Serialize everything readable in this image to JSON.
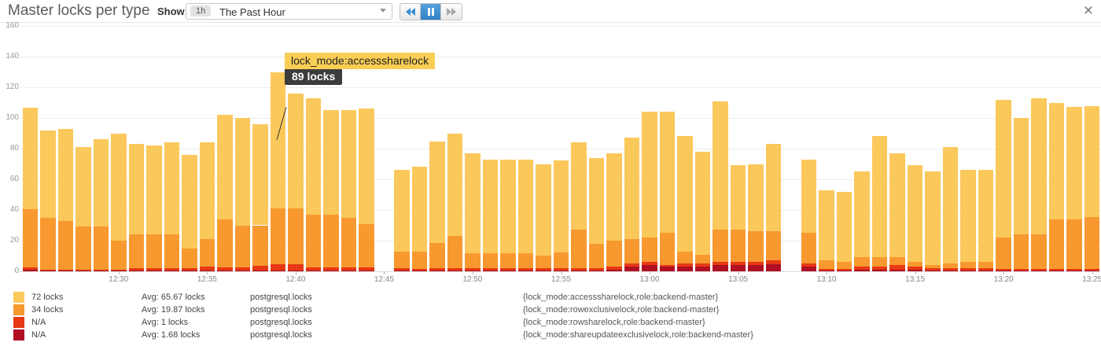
{
  "header": {
    "title": "Master locks per type",
    "show_label": "Show",
    "timeframe_badge": "1h",
    "timeframe_value": "The Past Hour",
    "controls": {
      "rewind": "rewind",
      "pause": "pause",
      "forward": "fast-forward"
    },
    "close": "×"
  },
  "tooltip": {
    "label": "lock_mode:accesssharelock",
    "value": "89 locks",
    "anchor_time": "12:39"
  },
  "legend": {
    "rows": [
      {
        "color": "#fbc95c",
        "value": "72 locks",
        "avg": "Avg: 65.67 locks",
        "metric": "postgresql.locks",
        "tags": "{lock_mode:accesssharelock,role:backend-master}"
      },
      {
        "color": "#f8992f",
        "value": "34 locks",
        "avg": "Avg: 19.87 locks",
        "metric": "postgresql.locks",
        "tags": "{lock_mode:rowexclusivelock,role:backend-master}"
      },
      {
        "color": "#e63914",
        "value": "N/A",
        "avg": "Avg: 1 locks",
        "metric": "postgresql.locks",
        "tags": "{lock_mode:rowsharelock,role:backend-master}"
      },
      {
        "color": "#b00e23",
        "value": "N/A",
        "avg": "Avg: 1.68 locks",
        "metric": "postgresql.locks",
        "tags": "{lock_mode:shareupdateexclusivelock,role:backend-master}"
      }
    ]
  },
  "chart_data": {
    "type": "bar",
    "stacked": true,
    "title": "Master locks per type",
    "ylim": [
      0,
      160
    ],
    "yticks": [
      0,
      20,
      40,
      60,
      80,
      100,
      120,
      140,
      160
    ],
    "xticks": [
      "12:30",
      "12:35",
      "12:40",
      "12:45",
      "12:50",
      "12:55",
      "13:00",
      "13:05",
      "13:10",
      "13:15",
      "13:20",
      "13:25"
    ],
    "grid": true,
    "legend_position": "bottom",
    "series": [
      {
        "name": "accesssharelock",
        "color": "#fbc85b"
      },
      {
        "name": "rowexclusivelock",
        "color": "#f8992f"
      },
      {
        "name": "rowsharelock",
        "color": "#e63914"
      },
      {
        "name": "shareupdateexclusivelock",
        "color": "#b00e23"
      }
    ],
    "bars": [
      {
        "t": "12:25",
        "v": [
          66,
          38,
          1.5,
          1
        ]
      },
      {
        "t": "12:26",
        "v": [
          57,
          34,
          0.7,
          0.3
        ]
      },
      {
        "t": "12:27",
        "v": [
          60,
          32,
          0.7,
          0.3
        ]
      },
      {
        "t": "12:28",
        "v": [
          52,
          28,
          0.7,
          0.3
        ]
      },
      {
        "t": "12:29",
        "v": [
          57,
          28,
          0.7,
          0.3
        ]
      },
      {
        "t": "12:30",
        "v": [
          70,
          19,
          0.7,
          0.3
        ]
      },
      {
        "t": "12:31",
        "v": [
          59,
          22,
          1.7,
          0.3
        ]
      },
      {
        "t": "12:32",
        "v": [
          58,
          22,
          1.7,
          0.3
        ]
      },
      {
        "t": "12:33",
        "v": [
          60,
          22,
          1.7,
          0.3
        ]
      },
      {
        "t": "12:34",
        "v": [
          61,
          13,
          1.7,
          0.3
        ]
      },
      {
        "t": "12:35",
        "v": [
          63,
          18,
          2.5,
          0.5
        ]
      },
      {
        "t": "12:36",
        "v": [
          68,
          31.5,
          2,
          0.5
        ]
      },
      {
        "t": "12:37",
        "v": [
          70,
          27.5,
          2,
          0.5
        ]
      },
      {
        "t": "12:38",
        "v": [
          66,
          26.5,
          3,
          0.5
        ]
      },
      {
        "t": "12:39",
        "v": [
          89,
          36.5,
          4,
          0.5
        ]
      },
      {
        "t": "12:40",
        "v": [
          75,
          36.5,
          4,
          0.5
        ]
      },
      {
        "t": "12:41",
        "v": [
          76,
          34.5,
          2,
          0.5
        ]
      },
      {
        "t": "12:42",
        "v": [
          68,
          34.5,
          2,
          0.5
        ]
      },
      {
        "t": "12:43",
        "v": [
          70,
          32.5,
          2,
          0.5
        ]
      },
      {
        "t": "12:44",
        "v": [
          75,
          28.5,
          2,
          0.5
        ]
      },
      {
        "t": "12:45",
        "v": null
      },
      {
        "t": "12:46",
        "v": [
          53,
          11,
          1.5,
          0.5
        ]
      },
      {
        "t": "12:47",
        "v": [
          55,
          11.5,
          1,
          0.5
        ]
      },
      {
        "t": "12:48",
        "v": [
          66,
          16.5,
          1.5,
          0.5
        ]
      },
      {
        "t": "12:49",
        "v": [
          67,
          21,
          1.5,
          0.5
        ]
      },
      {
        "t": "12:50",
        "v": [
          65,
          10,
          1.5,
          0.5
        ]
      },
      {
        "t": "12:51",
        "v": [
          61,
          10,
          1.5,
          0.5
        ]
      },
      {
        "t": "12:52",
        "v": [
          61,
          10,
          1.5,
          0.5
        ]
      },
      {
        "t": "12:53",
        "v": [
          61,
          10,
          1.5,
          0.5
        ]
      },
      {
        "t": "12:54",
        "v": [
          59,
          8.5,
          1.5,
          0.5
        ]
      },
      {
        "t": "12:55",
        "v": [
          60,
          10.5,
          1.5,
          0.5
        ]
      },
      {
        "t": "12:56",
        "v": [
          57,
          25,
          1.5,
          0.5
        ]
      },
      {
        "t": "12:57",
        "v": [
          56,
          16,
          1.5,
          0.5
        ]
      },
      {
        "t": "12:58",
        "v": [
          57,
          17,
          2,
          1
        ]
      },
      {
        "t": "12:59",
        "v": [
          66,
          16,
          2,
          3
        ]
      },
      {
        "t": "13:00",
        "v": [
          82,
          16,
          2,
          4
        ]
      },
      {
        "t": "13:01",
        "v": [
          79,
          21,
          1,
          3
        ]
      },
      {
        "t": "13:02",
        "v": [
          75,
          8,
          2,
          3
        ]
      },
      {
        "t": "13:03",
        "v": [
          67,
          6,
          2,
          3
        ]
      },
      {
        "t": "13:04",
        "v": [
          84,
          21,
          2,
          4
        ]
      },
      {
        "t": "13:05",
        "v": [
          42,
          21,
          2,
          4
        ]
      },
      {
        "t": "13:06",
        "v": [
          44,
          20,
          2,
          4
        ]
      },
      {
        "t": "13:07",
        "v": [
          57,
          19,
          2.5,
          4.5
        ]
      },
      {
        "t": "13:08",
        "v": null
      },
      {
        "t": "13:09",
        "v": [
          48,
          20,
          2,
          3
        ]
      },
      {
        "t": "13:10",
        "v": [
          46,
          5.5,
          1.2,
          0.3
        ]
      },
      {
        "t": "13:11",
        "v": [
          46,
          4.5,
          1,
          0.5
        ]
      },
      {
        "t": "13:12",
        "v": [
          56,
          6,
          2,
          1
        ]
      },
      {
        "t": "13:13",
        "v": [
          79,
          6,
          2,
          1
        ]
      },
      {
        "t": "13:14",
        "v": [
          68,
          5,
          3,
          1
        ]
      },
      {
        "t": "13:15",
        "v": [
          63,
          3,
          2,
          1
        ]
      },
      {
        "t": "13:16",
        "v": [
          61,
          2,
          1.5,
          0.5
        ]
      },
      {
        "t": "13:17",
        "v": [
          76,
          3,
          1.5,
          0.5
        ]
      },
      {
        "t": "13:18",
        "v": [
          60,
          4,
          1.5,
          0.5
        ]
      },
      {
        "t": "13:19",
        "v": [
          60,
          4,
          1.5,
          0.5
        ]
      },
      {
        "t": "13:20",
        "v": [
          90,
          20.5,
          1,
          0.5
        ]
      },
      {
        "t": "13:21",
        "v": [
          76,
          22.5,
          1,
          0.5
        ]
      },
      {
        "t": "13:22",
        "v": [
          89,
          22.5,
          1,
          0.5
        ]
      },
      {
        "t": "13:23",
        "v": [
          76,
          32.5,
          1,
          0.5
        ]
      },
      {
        "t": "13:24",
        "v": [
          73,
          32.5,
          1,
          0.5
        ]
      },
      {
        "t": "13:25",
        "v": [
          72,
          34,
          1,
          0.5
        ]
      }
    ]
  }
}
